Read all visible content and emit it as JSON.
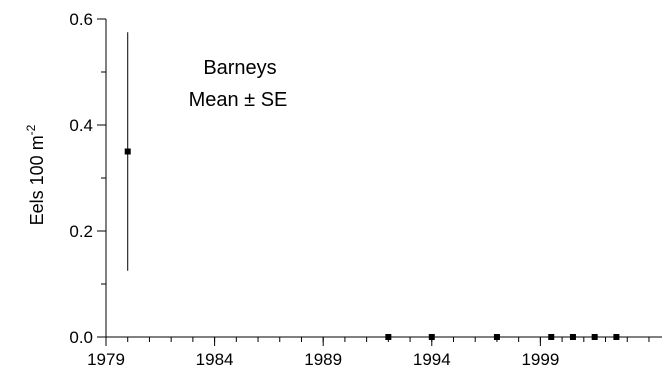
{
  "chart_data": {
    "type": "scatter",
    "title": "",
    "annotation": {
      "line1": "Barneys",
      "line2_prefix": "Mean ",
      "line2_pm": "±",
      "line2_suffix": " SE"
    },
    "ylabel": {
      "main": "Eels 100 m",
      "superscript": "-2"
    },
    "xlabel": "",
    "xlim": [
      1979,
      2004.6
    ],
    "ylim": [
      0,
      0.6
    ],
    "x_ticks": [
      1979,
      1984,
      1989,
      1994,
      1999
    ],
    "x_tick_labels": [
      "1979",
      "1984",
      "1989",
      "1994",
      "1999"
    ],
    "x_minor_step": 1,
    "y_ticks": [
      0.0,
      0.2,
      0.4,
      0.6
    ],
    "y_tick_labels": [
      "0.0",
      "0.2",
      "0.4",
      "0.6"
    ],
    "y_minor_step": 0.1,
    "grid": false,
    "series": [
      {
        "points": [
          {
            "x": 1980,
            "y": 0.35,
            "se": 0.225
          },
          {
            "x": 1992,
            "y": 0.0,
            "se": 0
          },
          {
            "x": 1994,
            "y": 0.0,
            "se": 0
          },
          {
            "x": 1997,
            "y": 0.0,
            "se": 0
          },
          {
            "x": 1999.5,
            "y": 0.0,
            "se": 0
          },
          {
            "x": 2000.5,
            "y": 0.0,
            "se": 0
          },
          {
            "x": 2001.5,
            "y": 0.0,
            "se": 0
          },
          {
            "x": 2002.5,
            "y": 0.0,
            "se": 0
          }
        ]
      }
    ]
  }
}
